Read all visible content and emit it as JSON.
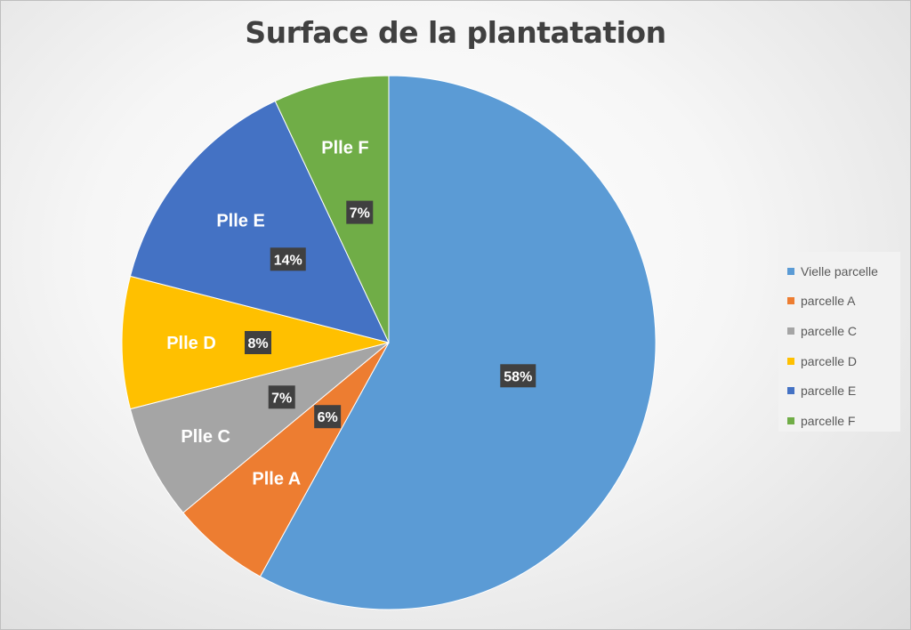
{
  "chart_data": {
    "type": "pie",
    "title": "Surface de la plantatation",
    "slices": [
      {
        "legend": "Vielle parcelle",
        "label": "",
        "value": 58,
        "percent_label": "58%",
        "color": "#5B9BD5"
      },
      {
        "legend": "parcelle A",
        "label": "Plle A",
        "value": 6,
        "percent_label": "6%",
        "color": "#ED7D31"
      },
      {
        "legend": "parcelle C",
        "label": "Plle C",
        "value": 7,
        "percent_label": "7%",
        "color": "#A5A5A5"
      },
      {
        "legend": "parcelle D",
        "label": "Plle D",
        "value": 8,
        "percent_label": "8%",
        "color": "#FFC000"
      },
      {
        "legend": "parcelle E",
        "label": "Plle E",
        "value": 14,
        "percent_label": "14%",
        "color": "#4472C4"
      },
      {
        "legend": "parcelle F",
        "label": "Plle F",
        "value": 7,
        "percent_label": "7%",
        "color": "#70AD47"
      }
    ],
    "legend_position": "right"
  }
}
